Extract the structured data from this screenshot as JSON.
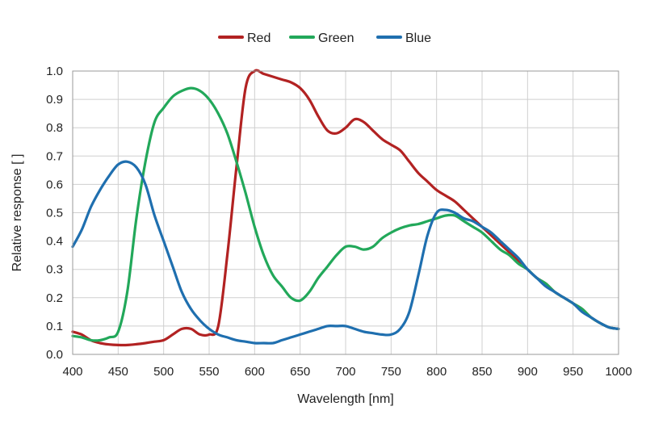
{
  "chart_data": {
    "type": "line",
    "title": "",
    "xlabel": "Wavelength [nm]",
    "ylabel": "Relative response [ ]",
    "xlim": [
      400,
      1000
    ],
    "ylim": [
      0,
      1.0
    ],
    "xticks": [
      400,
      450,
      500,
      550,
      600,
      650,
      700,
      750,
      800,
      850,
      900,
      950,
      1000
    ],
    "yticks": [
      "0.0",
      "0.1",
      "0.2",
      "0.3",
      "0.4",
      "0.5",
      "0.6",
      "0.7",
      "0.8",
      "0.9",
      "1.0"
    ],
    "grid": true,
    "legend_position": "top-center",
    "series": [
      {
        "name": "Red",
        "color": "#b22222",
        "x": [
          400,
          410,
          420,
          430,
          440,
          450,
          460,
          470,
          480,
          490,
          500,
          510,
          520,
          530,
          540,
          550,
          560,
          570,
          580,
          590,
          600,
          610,
          620,
          630,
          640,
          650,
          660,
          670,
          680,
          690,
          700,
          710,
          720,
          730,
          740,
          750,
          760,
          770,
          780,
          790,
          800,
          810,
          820,
          830,
          840,
          850,
          860,
          870,
          880,
          890,
          900,
          910,
          920,
          930,
          940,
          950,
          960,
          970,
          980,
          990,
          1000
        ],
        "y": [
          0.08,
          0.07,
          0.05,
          0.04,
          0.035,
          0.033,
          0.033,
          0.036,
          0.04,
          0.045,
          0.05,
          0.07,
          0.09,
          0.09,
          0.07,
          0.07,
          0.1,
          0.35,
          0.66,
          0.94,
          1.0,
          0.99,
          0.98,
          0.97,
          0.96,
          0.94,
          0.9,
          0.84,
          0.79,
          0.78,
          0.8,
          0.83,
          0.82,
          0.79,
          0.76,
          0.74,
          0.72,
          0.68,
          0.64,
          0.61,
          0.58,
          0.56,
          0.54,
          0.51,
          0.48,
          0.45,
          0.42,
          0.39,
          0.36,
          0.33,
          0.3,
          0.27,
          0.25,
          0.22,
          0.2,
          0.18,
          0.16,
          0.13,
          0.11,
          0.095,
          0.09
        ]
      },
      {
        "name": "Green",
        "color": "#22a85a",
        "x": [
          400,
          410,
          420,
          430,
          440,
          450,
          460,
          470,
          480,
          490,
          500,
          510,
          520,
          530,
          540,
          550,
          560,
          570,
          580,
          590,
          600,
          610,
          620,
          630,
          640,
          650,
          660,
          670,
          680,
          690,
          700,
          710,
          720,
          730,
          740,
          750,
          760,
          770,
          780,
          790,
          800,
          810,
          820,
          830,
          840,
          850,
          860,
          870,
          880,
          890,
          900,
          910,
          920,
          930,
          940,
          950,
          960,
          970,
          980,
          990,
          1000
        ],
        "y": [
          0.065,
          0.06,
          0.05,
          0.05,
          0.06,
          0.08,
          0.22,
          0.48,
          0.68,
          0.82,
          0.87,
          0.91,
          0.93,
          0.94,
          0.93,
          0.9,
          0.85,
          0.78,
          0.68,
          0.57,
          0.45,
          0.35,
          0.28,
          0.24,
          0.2,
          0.19,
          0.22,
          0.27,
          0.31,
          0.35,
          0.38,
          0.38,
          0.37,
          0.38,
          0.41,
          0.43,
          0.445,
          0.455,
          0.46,
          0.47,
          0.48,
          0.49,
          0.49,
          0.47,
          0.45,
          0.43,
          0.4,
          0.37,
          0.35,
          0.32,
          0.3,
          0.27,
          0.25,
          0.22,
          0.2,
          0.18,
          0.16,
          0.13,
          0.11,
          0.095,
          0.09
        ]
      },
      {
        "name": "Blue",
        "color": "#1f6faf",
        "x": [
          400,
          410,
          420,
          430,
          440,
          450,
          460,
          470,
          480,
          490,
          500,
          510,
          520,
          530,
          540,
          550,
          560,
          570,
          580,
          590,
          600,
          610,
          620,
          630,
          640,
          650,
          660,
          670,
          680,
          690,
          700,
          710,
          720,
          730,
          740,
          750,
          760,
          770,
          780,
          790,
          800,
          810,
          820,
          830,
          840,
          850,
          860,
          870,
          880,
          890,
          900,
          910,
          920,
          930,
          940,
          950,
          960,
          970,
          980,
          990,
          1000
        ],
        "y": [
          0.38,
          0.44,
          0.52,
          0.58,
          0.63,
          0.67,
          0.68,
          0.66,
          0.6,
          0.49,
          0.4,
          0.31,
          0.22,
          0.16,
          0.12,
          0.09,
          0.07,
          0.06,
          0.05,
          0.045,
          0.04,
          0.04,
          0.04,
          0.05,
          0.06,
          0.07,
          0.08,
          0.09,
          0.1,
          0.1,
          0.1,
          0.09,
          0.08,
          0.075,
          0.07,
          0.07,
          0.09,
          0.15,
          0.28,
          0.42,
          0.5,
          0.51,
          0.5,
          0.48,
          0.47,
          0.45,
          0.43,
          0.4,
          0.37,
          0.34,
          0.3,
          0.27,
          0.24,
          0.22,
          0.2,
          0.18,
          0.15,
          0.13,
          0.11,
          0.095,
          0.09
        ]
      }
    ]
  }
}
